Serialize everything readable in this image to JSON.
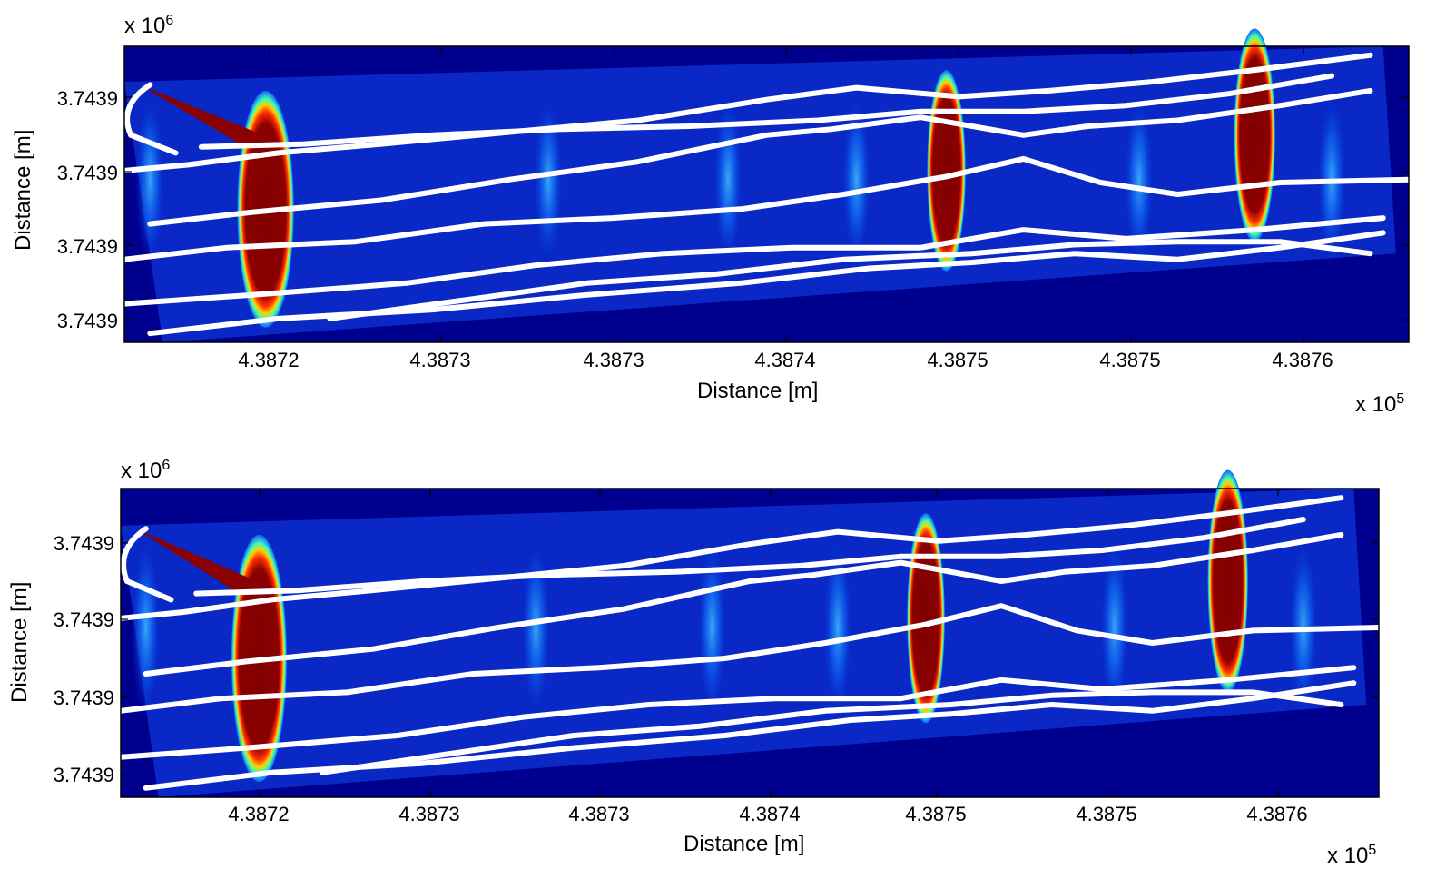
{
  "chart_data": [
    {
      "type": "heatmap",
      "title": "",
      "xlabel": "Distance [m]",
      "ylabel": "Distance [m]",
      "x_multiplier": "x 10",
      "x_multiplier_exp": "5",
      "y_multiplier": "x 10",
      "y_multiplier_exp": "6",
      "x_ticks": [
        "4.3872",
        "4.3873",
        "4.3873",
        "4.3874",
        "4.3875",
        "4.3875",
        "4.3876"
      ],
      "y_ticks": [
        "3.7439",
        "3.7439",
        "3.7439",
        "3.7439"
      ],
      "colormap": "jet",
      "background_color": "#00008f",
      "track_color": "#ffffff",
      "grid": false
    },
    {
      "type": "heatmap",
      "title": "",
      "xlabel": "Distance [m]",
      "ylabel": "Distance [m]",
      "x_multiplier": "x 10",
      "x_multiplier_exp": "5",
      "y_multiplier": "x 10",
      "y_multiplier_exp": "6",
      "x_ticks": [
        "4.3872",
        "4.3873",
        "4.3873",
        "4.3874",
        "4.3875",
        "4.3875",
        "4.3876"
      ],
      "y_ticks": [
        "3.7439",
        "3.7439",
        "3.7439",
        "3.7439"
      ],
      "colormap": "jet",
      "background_color": "#00008f",
      "track_color": "#ffffff",
      "grid": false
    }
  ]
}
